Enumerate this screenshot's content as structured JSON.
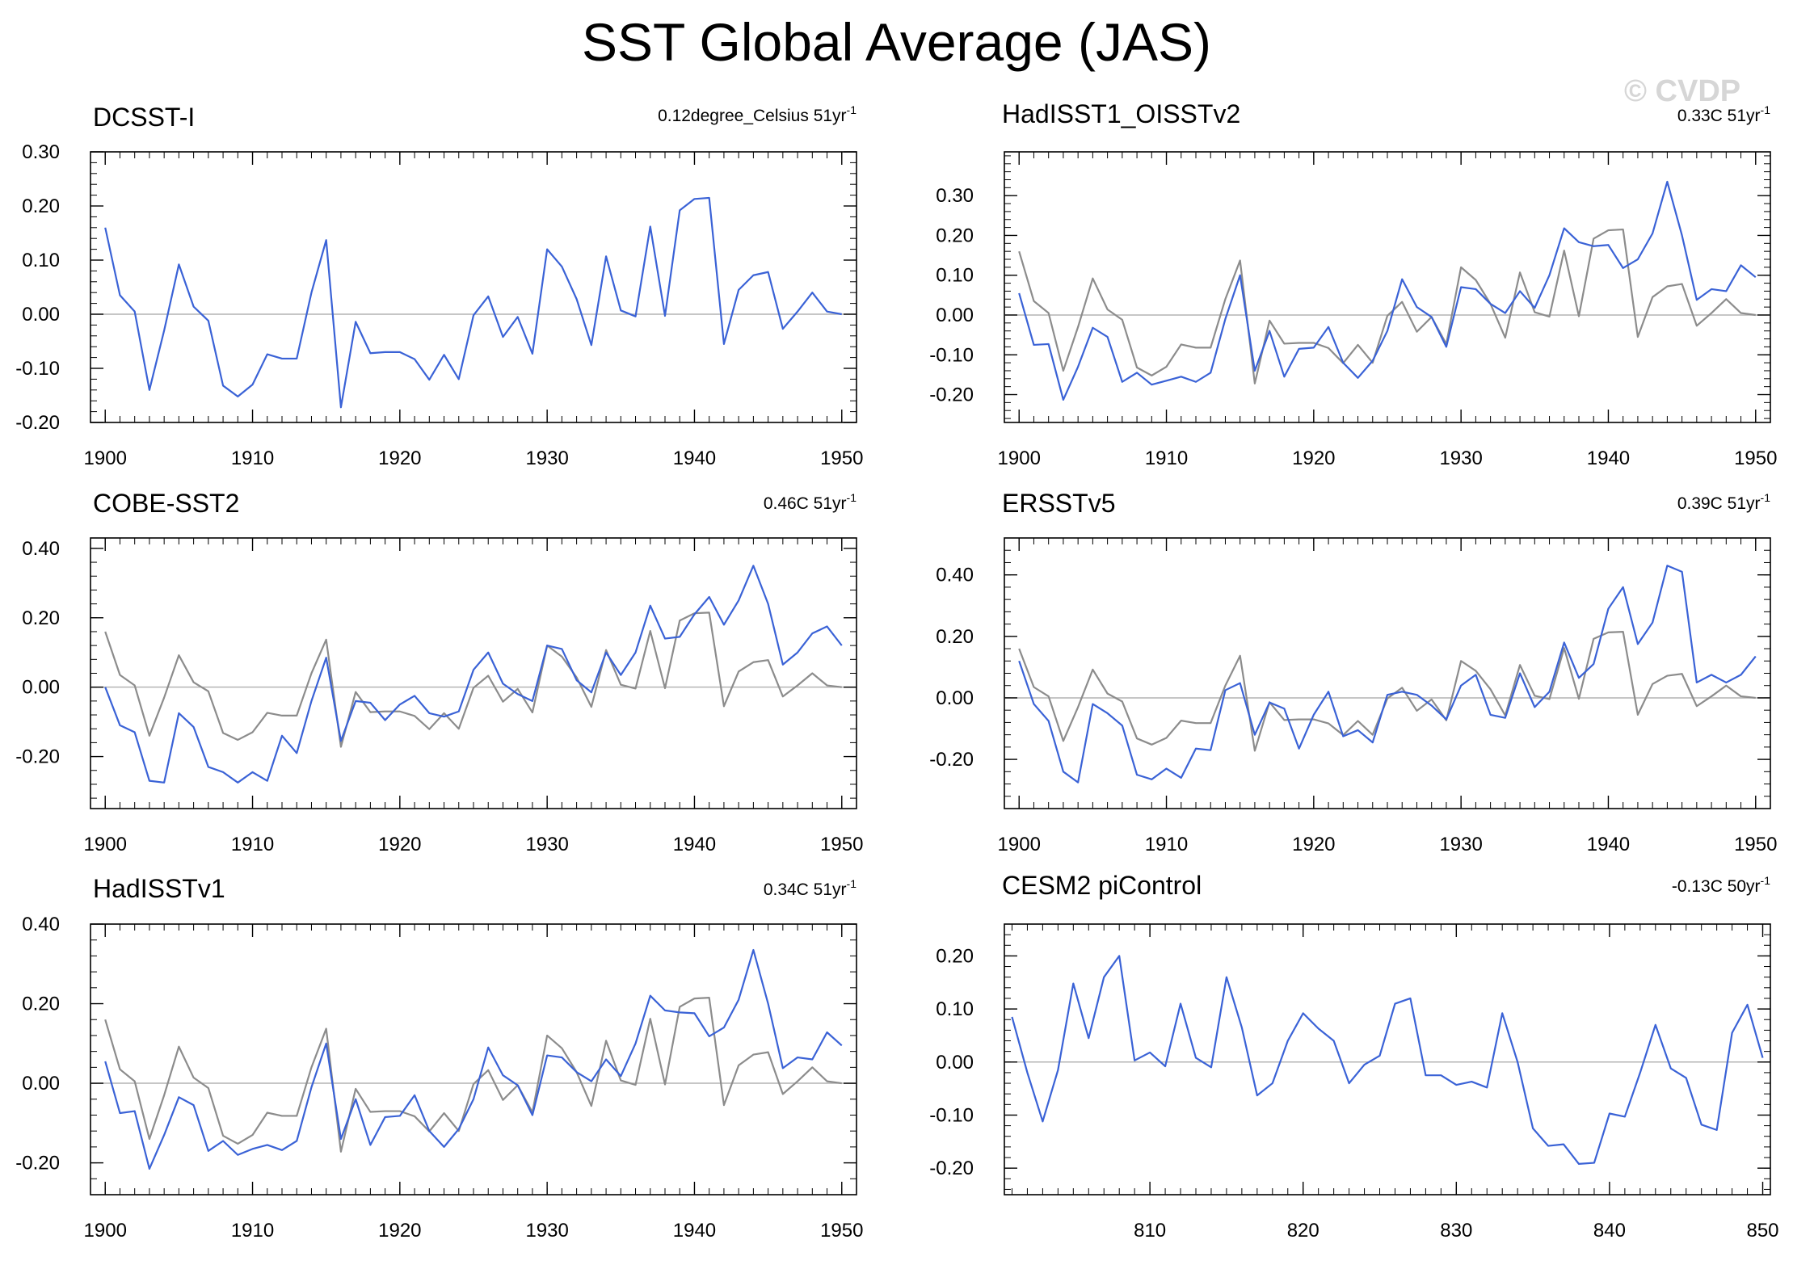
{
  "page": {
    "title": "SST Global Average (JAS)",
    "watermark": "© CVDP"
  },
  "colors": {
    "series": "#3a62d6",
    "reference": "#8c8c8c",
    "zero_line": "#b4b4b4",
    "axis": "#000000"
  },
  "chart_data": [
    {
      "type": "line",
      "title": "DCSST-I",
      "trend": "0.12degree_Celsius 51yr",
      "trend_exp": "-1",
      "xlim": [
        1899,
        1951
      ],
      "ylim": [
        -0.2,
        0.3
      ],
      "yticks": [
        -0.2,
        -0.1,
        0.0,
        0.1,
        0.2,
        0.3
      ],
      "ytick_labels": [
        "-0.20",
        "-0.10",
        "0.00",
        "0.10",
        "0.20",
        "0.30"
      ],
      "xticks": [
        1900,
        1910,
        1920,
        1930,
        1940,
        1950
      ],
      "x_start": 1900,
      "series": [
        {
          "values": [
            0.16,
            0.035,
            0.005,
            -0.14,
            -0.03,
            0.092,
            0.014,
            -0.012,
            -0.132,
            -0.152,
            -0.13,
            -0.074,
            -0.082,
            -0.082,
            0.04,
            0.137,
            -0.172,
            -0.014,
            -0.072,
            -0.07,
            -0.07,
            -0.083,
            -0.121,
            -0.075,
            -0.12,
            -0.002,
            0.033,
            -0.042,
            -0.005,
            -0.073,
            0.12,
            0.088,
            0.028,
            -0.057,
            0.107,
            0.007,
            -0.004,
            0.162,
            -0.003,
            0.192,
            0.213,
            0.215,
            -0.055,
            0.045,
            0.072,
            0.078,
            -0.027,
            0.005,
            0.04,
            0.005,
            0.0
          ]
        }
      ]
    },
    {
      "type": "line",
      "title": "HadISST1_OISSTv2",
      "trend": "0.33C 51yr",
      "trend_exp": "-1",
      "xlim": [
        1899,
        1951
      ],
      "ylim": [
        -0.27,
        0.41
      ],
      "yticks": [
        -0.2,
        -0.1,
        0.0,
        0.1,
        0.2,
        0.3
      ],
      "ytick_labels": [
        "-0.20",
        "-0.10",
        "0.00",
        "0.10",
        "0.20",
        "0.30"
      ],
      "xticks": [
        1900,
        1910,
        1920,
        1930,
        1940,
        1950
      ],
      "x_start": 1900,
      "series": [
        {
          "role": "reference",
          "values": [
            0.16,
            0.035,
            0.005,
            -0.14,
            -0.03,
            0.092,
            0.014,
            -0.012,
            -0.132,
            -0.152,
            -0.13,
            -0.074,
            -0.082,
            -0.082,
            0.04,
            0.137,
            -0.172,
            -0.014,
            -0.072,
            -0.07,
            -0.07,
            -0.083,
            -0.121,
            -0.075,
            -0.12,
            -0.002,
            0.033,
            -0.042,
            -0.005,
            -0.073,
            0.12,
            0.088,
            0.028,
            -0.057,
            0.107,
            0.007,
            -0.004,
            0.162,
            -0.003,
            0.192,
            0.213,
            0.215,
            -0.055,
            0.045,
            0.072,
            0.078,
            -0.027,
            0.005,
            0.04,
            0.005,
            0.0
          ]
        },
        {
          "values": [
            0.055,
            -0.075,
            -0.073,
            -0.213,
            -0.13,
            -0.032,
            -0.055,
            -0.168,
            -0.145,
            -0.175,
            -0.165,
            -0.155,
            -0.168,
            -0.145,
            -0.01,
            0.1,
            -0.14,
            -0.04,
            -0.155,
            -0.085,
            -0.082,
            -0.03,
            -0.12,
            -0.158,
            -0.115,
            -0.04,
            0.09,
            0.02,
            -0.005,
            -0.08,
            0.07,
            0.065,
            0.028,
            0.005,
            0.06,
            0.018,
            0.1,
            0.218,
            0.183,
            0.173,
            0.176,
            0.118,
            0.14,
            0.205,
            0.335,
            0.2,
            0.038,
            0.065,
            0.06,
            0.125,
            0.095
          ]
        }
      ]
    },
    {
      "type": "line",
      "title": "COBE-SST2",
      "trend": "0.46C 51yr",
      "trend_exp": "-1",
      "xlim": [
        1899,
        1951
      ],
      "ylim": [
        -0.35,
        0.43
      ],
      "yticks": [
        -0.2,
        0.0,
        0.2,
        0.4
      ],
      "ytick_labels": [
        "-0.20",
        "0.00",
        "0.20",
        "0.40"
      ],
      "xticks": [
        1900,
        1910,
        1920,
        1930,
        1940,
        1950
      ],
      "x_start": 1900,
      "series": [
        {
          "role": "reference",
          "values": [
            0.16,
            0.035,
            0.005,
            -0.14,
            -0.03,
            0.092,
            0.014,
            -0.012,
            -0.132,
            -0.152,
            -0.13,
            -0.074,
            -0.082,
            -0.082,
            0.04,
            0.137,
            -0.172,
            -0.014,
            -0.072,
            -0.07,
            -0.07,
            -0.083,
            -0.121,
            -0.075,
            -0.12,
            -0.002,
            0.033,
            -0.042,
            -0.005,
            -0.073,
            0.12,
            0.088,
            0.028,
            -0.057,
            0.107,
            0.007,
            -0.004,
            0.162,
            -0.003,
            0.192,
            0.213,
            0.215,
            -0.055,
            0.045,
            0.072,
            0.078,
            -0.027,
            0.005,
            0.04,
            0.005,
            0.0
          ]
        },
        {
          "values": [
            0.0,
            -0.11,
            -0.13,
            -0.27,
            -0.275,
            -0.075,
            -0.115,
            -0.23,
            -0.245,
            -0.275,
            -0.245,
            -0.27,
            -0.14,
            -0.19,
            -0.04,
            0.085,
            -0.155,
            -0.04,
            -0.045,
            -0.095,
            -0.05,
            -0.025,
            -0.075,
            -0.085,
            -0.07,
            0.05,
            0.1,
            0.01,
            -0.02,
            -0.04,
            0.12,
            0.11,
            0.02,
            -0.015,
            0.1,
            0.035,
            0.1,
            0.235,
            0.14,
            0.145,
            0.21,
            0.26,
            0.18,
            0.25,
            0.35,
            0.24,
            0.065,
            0.1,
            0.155,
            0.175,
            0.12
          ]
        }
      ]
    },
    {
      "type": "line",
      "title": "ERSSTv5",
      "trend": "0.39C 51yr",
      "trend_exp": "-1",
      "xlim": [
        1899,
        1951
      ],
      "ylim": [
        -0.36,
        0.52
      ],
      "yticks": [
        -0.2,
        0.0,
        0.2,
        0.4
      ],
      "ytick_labels": [
        "-0.20",
        "0.00",
        "0.20",
        "0.40"
      ],
      "xticks": [
        1900,
        1910,
        1920,
        1930,
        1940,
        1950
      ],
      "x_start": 1900,
      "series": [
        {
          "role": "reference",
          "values": [
            0.16,
            0.035,
            0.005,
            -0.14,
            -0.03,
            0.092,
            0.014,
            -0.012,
            -0.132,
            -0.152,
            -0.13,
            -0.074,
            -0.082,
            -0.082,
            0.04,
            0.137,
            -0.172,
            -0.014,
            -0.072,
            -0.07,
            -0.07,
            -0.083,
            -0.121,
            -0.075,
            -0.12,
            -0.002,
            0.033,
            -0.042,
            -0.005,
            -0.073,
            0.12,
            0.088,
            0.028,
            -0.057,
            0.107,
            0.007,
            -0.004,
            0.162,
            -0.003,
            0.192,
            0.213,
            0.215,
            -0.055,
            0.045,
            0.072,
            0.078,
            -0.027,
            0.005,
            0.04,
            0.005,
            0.0
          ]
        },
        {
          "values": [
            0.12,
            -0.02,
            -0.075,
            -0.24,
            -0.275,
            -0.02,
            -0.05,
            -0.09,
            -0.25,
            -0.265,
            -0.23,
            -0.26,
            -0.165,
            -0.17,
            0.025,
            0.048,
            -0.12,
            -0.015,
            -0.035,
            -0.165,
            -0.055,
            0.02,
            -0.125,
            -0.105,
            -0.145,
            0.01,
            0.02,
            0.01,
            -0.025,
            -0.07,
            0.04,
            0.075,
            -0.055,
            -0.065,
            0.08,
            -0.03,
            0.02,
            0.18,
            0.065,
            0.11,
            0.29,
            0.36,
            0.175,
            0.245,
            0.43,
            0.41,
            0.05,
            0.075,
            0.05,
            0.075,
            0.135
          ]
        }
      ]
    },
    {
      "type": "line",
      "title": "HadISSTv1",
      "trend": "0.34C 51yr",
      "trend_exp": "-1",
      "xlim": [
        1899,
        1951
      ],
      "ylim": [
        -0.28,
        0.4
      ],
      "yticks": [
        -0.2,
        0.0,
        0.2,
        0.4
      ],
      "ytick_labels": [
        "-0.20",
        "0.00",
        "0.20",
        "0.40"
      ],
      "xticks": [
        1900,
        1910,
        1920,
        1930,
        1940,
        1950
      ],
      "x_start": 1900,
      "series": [
        {
          "role": "reference",
          "values": [
            0.16,
            0.035,
            0.005,
            -0.14,
            -0.03,
            0.092,
            0.014,
            -0.012,
            -0.132,
            -0.152,
            -0.13,
            -0.074,
            -0.082,
            -0.082,
            0.04,
            0.137,
            -0.172,
            -0.014,
            -0.072,
            -0.07,
            -0.07,
            -0.083,
            -0.121,
            -0.075,
            -0.12,
            -0.002,
            0.033,
            -0.042,
            -0.005,
            -0.073,
            0.12,
            0.088,
            0.028,
            -0.057,
            0.107,
            0.007,
            -0.004,
            0.162,
            -0.003,
            0.192,
            0.213,
            0.215,
            -0.055,
            0.045,
            0.072,
            0.078,
            -0.027,
            0.005,
            0.04,
            0.005,
            0.0
          ]
        },
        {
          "values": [
            0.055,
            -0.075,
            -0.07,
            -0.215,
            -0.13,
            -0.035,
            -0.055,
            -0.17,
            -0.145,
            -0.18,
            -0.165,
            -0.155,
            -0.168,
            -0.145,
            -0.01,
            0.1,
            -0.14,
            -0.04,
            -0.155,
            -0.085,
            -0.082,
            -0.03,
            -0.12,
            -0.16,
            -0.115,
            -0.04,
            0.09,
            0.02,
            -0.005,
            -0.08,
            0.07,
            0.065,
            0.028,
            0.005,
            0.06,
            0.018,
            0.1,
            0.22,
            0.183,
            0.178,
            0.176,
            0.118,
            0.14,
            0.21,
            0.335,
            0.2,
            0.038,
            0.065,
            0.06,
            0.128,
            0.095
          ]
        }
      ]
    },
    {
      "type": "line",
      "title": "CESM2 piControl",
      "trend": "-0.13C 50yr",
      "trend_exp": "-1",
      "xlim": [
        800.5,
        850.5
      ],
      "ylim": [
        -0.25,
        0.26
      ],
      "yticks": [
        -0.2,
        -0.1,
        0.0,
        0.1,
        0.2
      ],
      "ytick_labels": [
        "-0.20",
        "-0.10",
        "0.00",
        "0.10",
        "0.20"
      ],
      "xticks": [
        810,
        820,
        830,
        840,
        850
      ],
      "x_start": 801,
      "series": [
        {
          "values": [
            0.085,
            -0.02,
            -0.112,
            -0.015,
            0.148,
            0.045,
            0.16,
            0.2,
            0.003,
            0.018,
            -0.008,
            0.11,
            0.008,
            -0.01,
            0.16,
            0.065,
            -0.063,
            -0.04,
            0.04,
            0.092,
            0.063,
            0.04,
            -0.04,
            -0.005,
            0.012,
            0.11,
            0.12,
            -0.025,
            -0.025,
            -0.043,
            -0.037,
            -0.048,
            0.092,
            0.0,
            -0.125,
            -0.158,
            -0.155,
            -0.192,
            -0.19,
            -0.097,
            -0.103,
            -0.02,
            0.07,
            -0.012,
            -0.03,
            -0.118,
            -0.128,
            0.055,
            0.108,
            0.008
          ]
        }
      ]
    }
  ]
}
